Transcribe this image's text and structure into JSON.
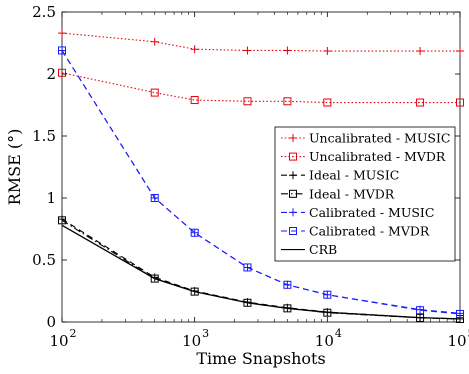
{
  "chart_data": {
    "type": "line",
    "xlabel": "Time Snapshots",
    "ylabel": "RMSE (°)",
    "xscale": "log",
    "xlim": [
      100,
      100000
    ],
    "ylim": [
      0,
      2.5
    ],
    "x_ticks": [
      100,
      1000,
      10000,
      100000
    ],
    "x_tick_labels": [
      {
        "base": "10",
        "exp": "2"
      },
      {
        "base": "10",
        "exp": "3"
      },
      {
        "base": "10",
        "exp": "4"
      },
      {
        "base": "10",
        "exp": "5"
      }
    ],
    "y_ticks": [
      0,
      0.5,
      1,
      1.5,
      2,
      2.5
    ],
    "y_tick_labels": [
      "0",
      "0.5",
      "1",
      "1.5",
      "2",
      "2.5"
    ],
    "grid": false,
    "legend_position": "center-right",
    "x": [
      100,
      500,
      1000,
      2500,
      5000,
      10000,
      50000,
      100000
    ],
    "series": [
      {
        "name": "Uncalibrated - MUSIC",
        "color": "#e8000b",
        "dash": "dotted",
        "marker": "plus",
        "values": [
          2.33,
          2.26,
          2.2,
          2.19,
          2.19,
          2.185,
          2.185,
          2.185
        ]
      },
      {
        "name": "Uncalibrated - MVDR",
        "color": "#e8000b",
        "dash": "dotted",
        "marker": "square",
        "values": [
          2.01,
          1.85,
          1.79,
          1.78,
          1.78,
          1.77,
          1.77,
          1.77
        ]
      },
      {
        "name": "Ideal - MUSIC",
        "color": "#000000",
        "dash": "dashed",
        "marker": "plus",
        "values": [
          0.83,
          0.36,
          0.25,
          0.16,
          0.115,
          0.08,
          0.035,
          0.025
        ]
      },
      {
        "name": "Ideal - MVDR",
        "color": "#000000",
        "dash": "dashdot",
        "marker": "square",
        "values": [
          0.82,
          0.35,
          0.245,
          0.155,
          0.11,
          0.075,
          0.033,
          0.024
        ]
      },
      {
        "name": "Calibrated - MUSIC",
        "color": "#1a1aff",
        "dash": "dashed",
        "marker": "plus",
        "values": [
          2.19,
          1.0,
          0.72,
          0.44,
          0.3,
          0.22,
          0.1,
          0.07
        ]
      },
      {
        "name": "Calibrated - MVDR",
        "color": "#1a1aff",
        "dash": "dashed",
        "marker": "square",
        "values": [
          2.19,
          1.0,
          0.72,
          0.44,
          0.3,
          0.22,
          0.095,
          0.065
        ]
      },
      {
        "name": "CRB",
        "color": "#000000",
        "dash": "solid",
        "marker": "none",
        "values": [
          0.78,
          0.35,
          0.245,
          0.155,
          0.11,
          0.078,
          0.035,
          0.025
        ]
      }
    ]
  }
}
